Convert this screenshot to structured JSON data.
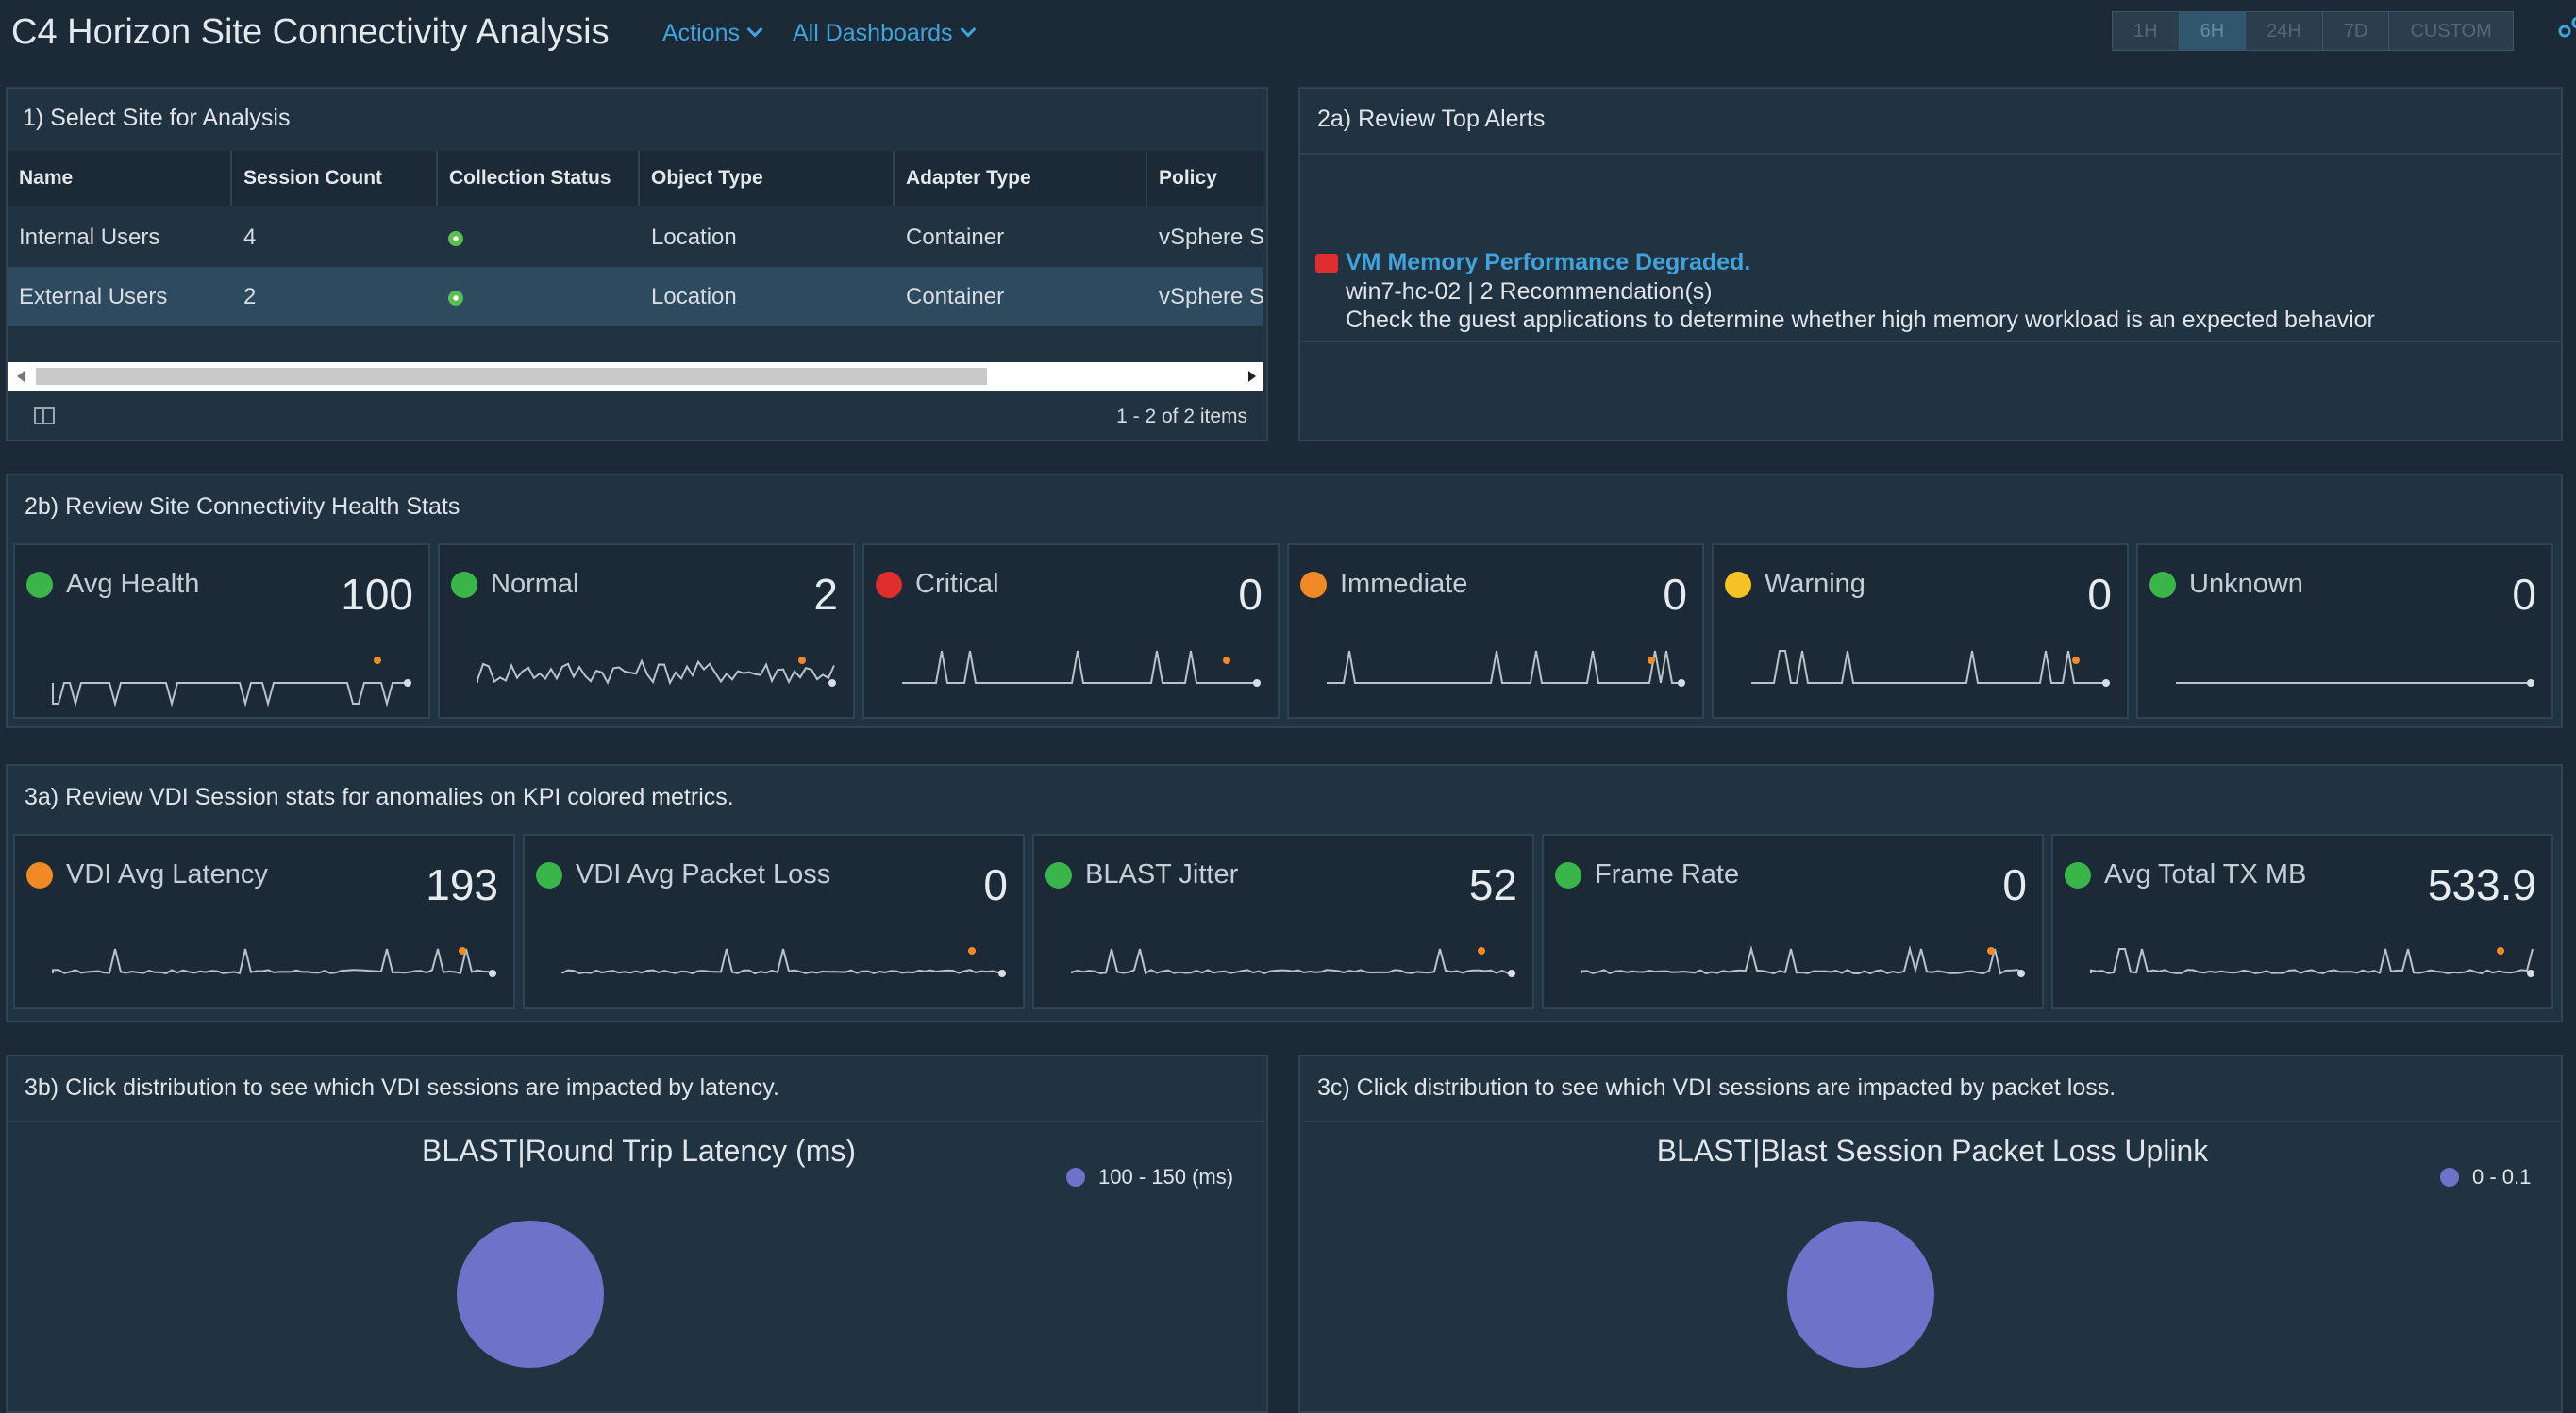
{
  "header": {
    "title": "C4 Horizon Site Connectivity Analysis",
    "actions_label": "Actions",
    "dashboards_label": "All Dashboards",
    "time_ranges": [
      "1H",
      "6H",
      "24H",
      "7D",
      "CUSTOM"
    ],
    "active_time_range": "6H"
  },
  "panel1": {
    "title": "1) Select Site for Analysis",
    "columns": [
      "Name",
      "Session Count",
      "Collection Status",
      "Object Type",
      "Adapter Type",
      "Policy"
    ],
    "rows": [
      {
        "name": "Internal Users",
        "session_count": "4",
        "collection_status": "green",
        "object_type": "Location",
        "adapter_type": "Container",
        "policy": "vSphere S"
      },
      {
        "name": "External Users",
        "session_count": "2",
        "collection_status": "green",
        "object_type": "Location",
        "adapter_type": "Container",
        "policy": "vSphere S"
      }
    ],
    "pager": "1 - 2 of 2 items"
  },
  "panel2a": {
    "title": "2a) Review Top Alerts",
    "alert": {
      "title": "VM Memory Performance Degraded.",
      "line1": "win7-hc-02 | 2 Recommendation(s)",
      "line2": "Check the guest applications to determine whether high memory workload is an expected behavior"
    }
  },
  "panel2b": {
    "title": "2b) Review Site Connectivity Health Stats",
    "cards": [
      {
        "label": "Avg Health",
        "value": "100",
        "color": "#3ab54a"
      },
      {
        "label": "Normal",
        "value": "2",
        "color": "#3ab54a"
      },
      {
        "label": "Critical",
        "value": "0",
        "color": "#e02d2d"
      },
      {
        "label": "Immediate",
        "value": "0",
        "color": "#f18a24"
      },
      {
        "label": "Warning",
        "value": "0",
        "color": "#f6c226"
      },
      {
        "label": "Unknown",
        "value": "0",
        "color": "#3ab54a"
      }
    ]
  },
  "panel3a": {
    "title": "3a) Review VDI Session stats for anomalies on KPI colored metrics.",
    "cards": [
      {
        "label": "VDI Avg Latency",
        "value": "193",
        "color": "#f18a24"
      },
      {
        "label": "VDI Avg Packet Loss",
        "value": "0",
        "color": "#3ab54a"
      },
      {
        "label": "BLAST Jitter",
        "value": "52",
        "color": "#3ab54a"
      },
      {
        "label": "Frame Rate",
        "value": "0",
        "color": "#3ab54a"
      },
      {
        "label": "Avg Total TX MB",
        "value": "533.9",
        "color": "#3ab54a"
      }
    ]
  },
  "panel3b": {
    "title": "3b) Click distribution to see which VDI sessions are impacted by latency.",
    "chart_title": "BLAST|Round Trip Latency (ms)",
    "legend": "100 - 150 (ms)",
    "color": "#6f72c9"
  },
  "panel3c": {
    "title": "3c) Click distribution to see which VDI sessions are impacted by packet loss.",
    "chart_title": "BLAST|Blast Session Packet Loss Uplink",
    "legend": "0 - 0.1",
    "color": "#6f72c9"
  },
  "chart_data": [
    {
      "type": "pie",
      "title": "BLAST|Round Trip Latency (ms)",
      "categories": [
        "100 - 150 (ms)"
      ],
      "values": [
        100
      ]
    },
    {
      "type": "pie",
      "title": "BLAST|Blast Session Packet Loss Uplink",
      "categories": [
        "0 - 0.1"
      ],
      "values": [
        100
      ]
    }
  ]
}
